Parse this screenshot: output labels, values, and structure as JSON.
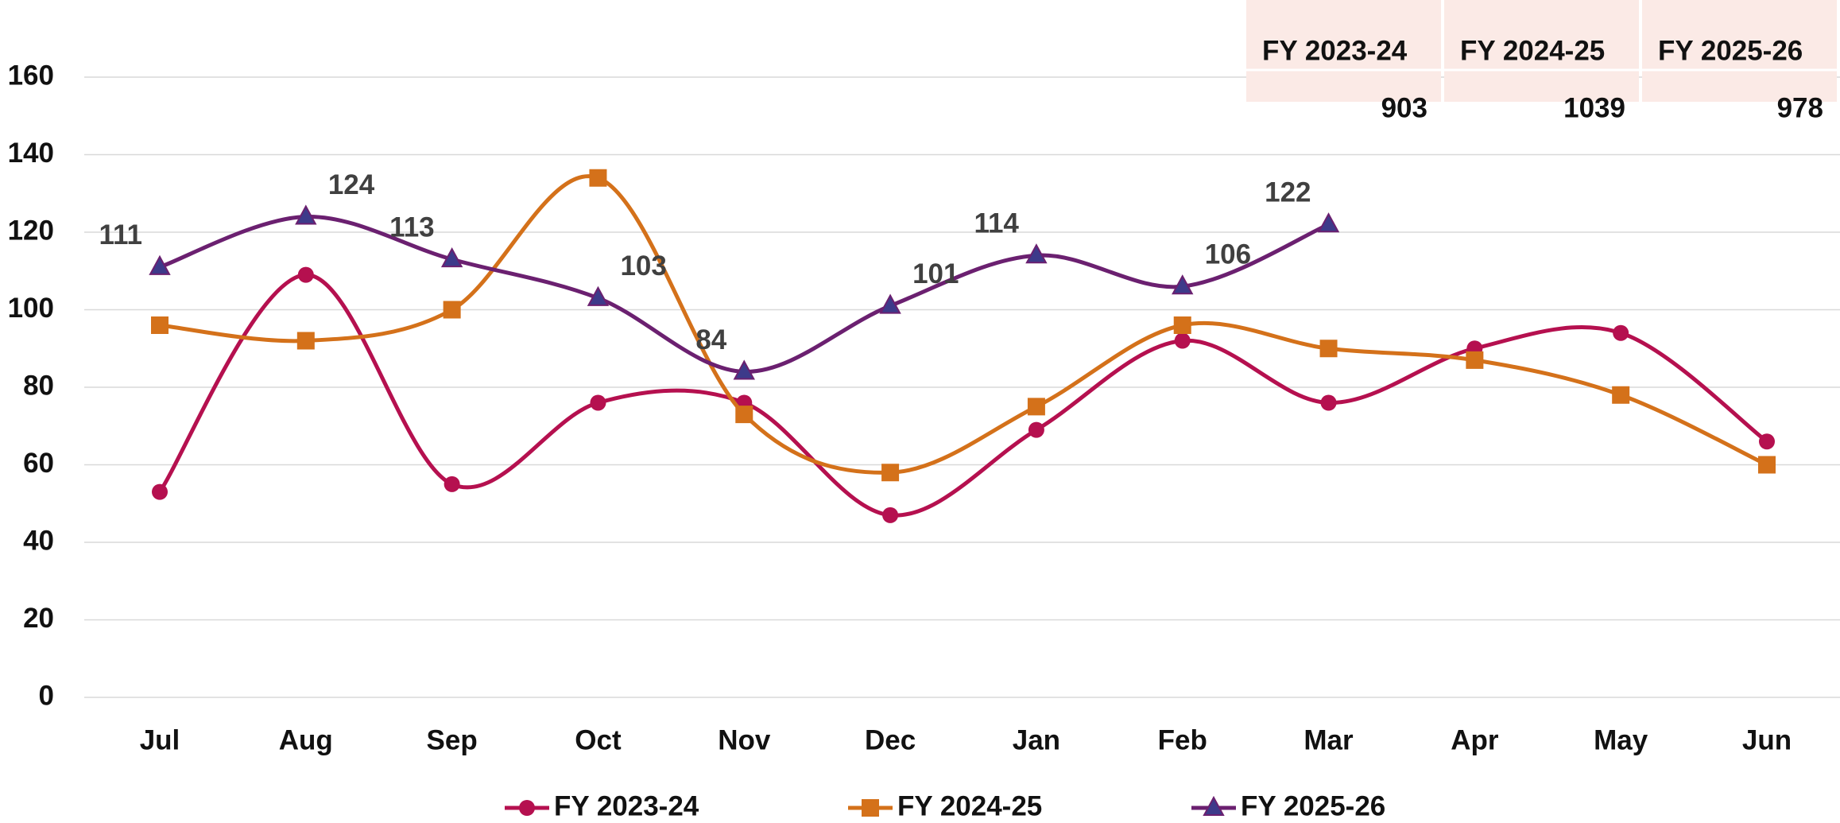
{
  "chart_data": {
    "type": "line",
    "categories": [
      "Jul",
      "Aug",
      "Sep",
      "Oct",
      "Nov",
      "Dec",
      "Jan",
      "Feb",
      "Mar",
      "Apr",
      "May",
      "Jun"
    ],
    "series": [
      {
        "name": "FY 2023-24",
        "color": "#b5104f",
        "marker": "circle",
        "values": [
          53,
          109,
          55,
          76,
          76,
          47,
          69,
          92,
          76,
          90,
          94,
          66
        ]
      },
      {
        "name": "FY 2024-25",
        "color": "#d4711a",
        "marker": "square",
        "values": [
          96,
          92,
          100,
          134,
          73,
          58,
          75,
          96,
          90,
          87,
          78,
          60
        ]
      },
      {
        "name": "FY 2025-26",
        "color": "#6b2070",
        "marker": "triangle",
        "data_labels": true,
        "values": [
          111,
          124,
          113,
          103,
          84,
          101,
          114,
          106,
          122,
          null,
          null,
          null
        ]
      }
    ],
    "ylim": [
      0,
      160
    ],
    "yticks": [
      0,
      20,
      40,
      60,
      80,
      100,
      120,
      140,
      160
    ],
    "grid": true,
    "smooth": true,
    "legend": "bottom",
    "summary_table": {
      "headers": [
        "FY 2023-24",
        "FY 2024-25",
        "FY 2025-26"
      ],
      "totals": [
        903,
        1039,
        978
      ]
    }
  }
}
